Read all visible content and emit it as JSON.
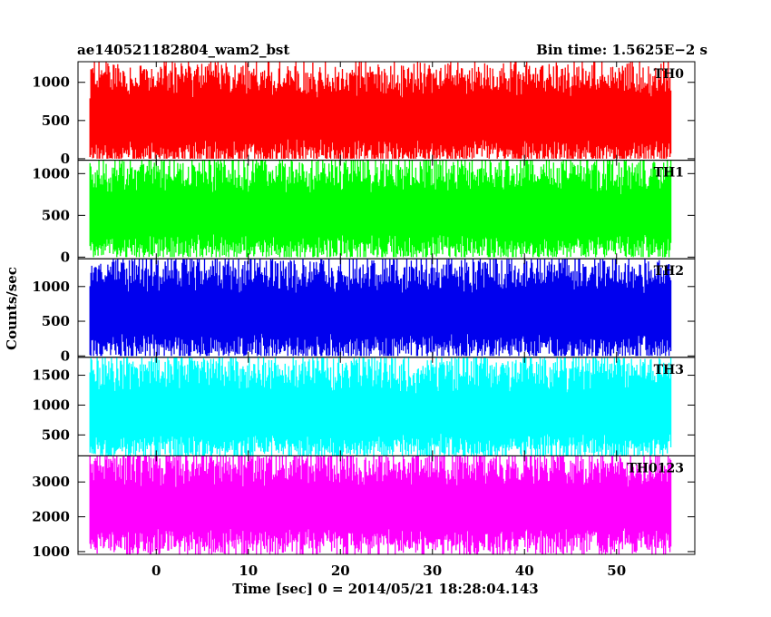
{
  "header": {
    "left": "ae140521182804_wam2_bst",
    "right": "Bin time: 1.5625E−2 s"
  },
  "chart_data": {
    "type": "line",
    "xlabel": "Time [sec] 0 = 2014/05/21 18:28:04.143",
    "ylabel": "Counts/sec",
    "xlim": [
      -8.5,
      58.5
    ],
    "data_x_range": [
      -7.2,
      55.9
    ],
    "x_ticks": [
      0,
      10,
      20,
      30,
      40,
      50
    ],
    "panels": [
      {
        "name": "TH0",
        "color": "#ff0000",
        "ylim": [
          -20,
          1270
        ],
        "y_ticks": [
          0,
          500,
          1000
        ],
        "mean": 550,
        "min": 0,
        "max": 1270
      },
      {
        "name": "TH1",
        "color": "#00ff00",
        "ylim": [
          -20,
          1160
        ],
        "y_ticks": [
          0,
          500,
          1000
        ],
        "mean": 540,
        "min": 0,
        "max": 1160
      },
      {
        "name": "TH2",
        "color": "#0000ee",
        "ylim": [
          -20,
          1400
        ],
        "y_ticks": [
          0,
          500,
          1000
        ],
        "mean": 640,
        "min": 0,
        "max": 1400
      },
      {
        "name": "TH3",
        "color": "#00ffff",
        "ylim": [
          150,
          1800
        ],
        "y_ticks": [
          500,
          1000,
          1500
        ],
        "mean": 900,
        "min": 150,
        "max": 1800
      },
      {
        "name": "TH0123",
        "color": "#ff00ff",
        "ylim": [
          920,
          3750
        ],
        "y_ticks": [
          1000,
          2000,
          3000
        ],
        "mean": 2300,
        "min": 920,
        "max": 3750
      }
    ]
  }
}
